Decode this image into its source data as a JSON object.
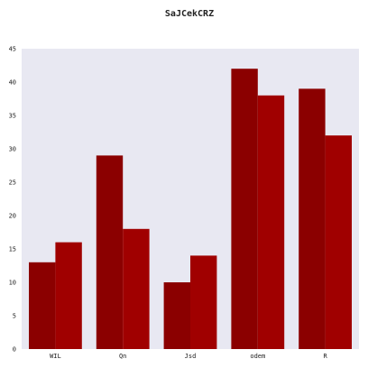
{
  "chart_data": {
    "type": "bar",
    "title": "SaJCekCRZ",
    "xlabel": "",
    "ylabel": "",
    "categories": [
      "WIL",
      "Qn",
      "Jsd",
      "odem",
      "R"
    ],
    "series": [
      {
        "color": "#8b0000",
        "values": [
          13,
          29,
          10,
          42,
          39
        ]
      },
      {
        "color": "#a00000",
        "values": [
          16,
          18,
          14,
          38,
          32
        ]
      }
    ],
    "ylim": [
      0,
      45
    ],
    "yticks": [
      0,
      5,
      10,
      15,
      20,
      25,
      30,
      35,
      40,
      45
    ],
    "grid": false,
    "background": "#e8e8f2"
  }
}
